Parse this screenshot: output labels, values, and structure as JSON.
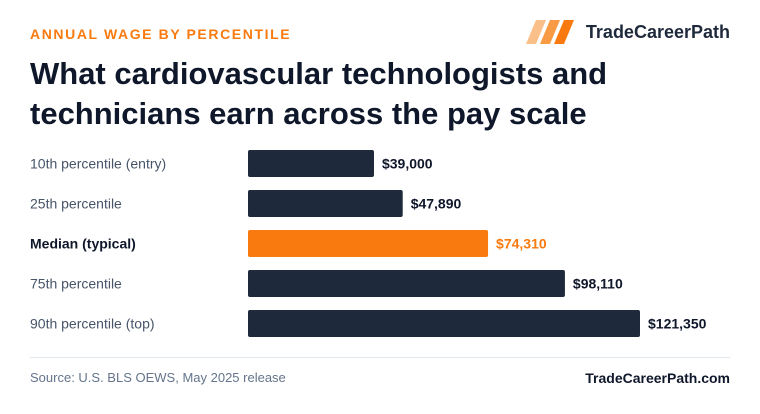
{
  "header": {
    "kicker": "ANNUAL WAGE BY PERCENTILE",
    "brand_name": "TradeCareerPath",
    "brand_icon": "stripes-logo-icon",
    "title": "What cardiovascular technologists and technicians earn across the pay scale"
  },
  "chart_data": {
    "type": "bar",
    "orientation": "horizontal",
    "title": "",
    "xlabel": "",
    "ylabel": "",
    "categories": [
      "10th percentile (entry)",
      "25th percentile",
      "Median (typical)",
      "75th percentile",
      "90th percentile (top)"
    ],
    "values": [
      39000,
      47890,
      74310,
      98110,
      121350
    ],
    "value_labels": [
      "$39,000",
      "$47,890",
      "$74,310",
      "$98,110",
      "$121,350"
    ],
    "highlight_index": 2,
    "xlim": [
      0,
      121350
    ],
    "grid": false,
    "colors": {
      "default": "#1e293b",
      "highlight": "#f97a0f",
      "label": "#475569"
    }
  },
  "footer": {
    "source": "Source: U.S. BLS OEWS, May 2025 release",
    "site": "TradeCareerPath.com"
  }
}
